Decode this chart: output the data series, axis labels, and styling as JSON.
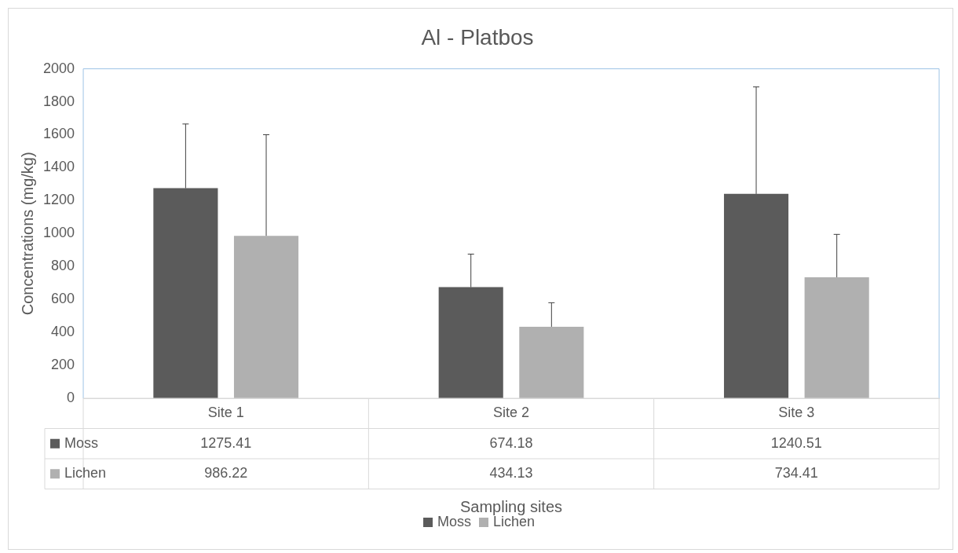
{
  "chart_data": {
    "type": "bar",
    "title": "Al - Platbos",
    "xlabel": "Sampling sites",
    "ylabel": "Concentrations (mg/kg)",
    "categories": [
      "Site 1",
      "Site 2",
      "Site 3"
    ],
    "series": [
      {
        "name": "Moss",
        "color": "#5b5b5b",
        "values": [
          1275.41,
          674.18,
          1240.51
        ],
        "errors": [
          [
            1275.41,
            1665
          ],
          [
            674.18,
            875
          ],
          [
            1240.51,
            1890
          ]
        ]
      },
      {
        "name": "Lichen",
        "color": "#b0b0b0",
        "values": [
          986.22,
          434.13,
          734.41
        ],
        "errors": [
          [
            986.22,
            1600
          ],
          [
            434.13,
            580
          ],
          [
            734.41,
            995
          ]
        ]
      }
    ],
    "ylim": [
      0,
      2000
    ],
    "yticks": [
      0,
      200,
      400,
      600,
      800,
      1000,
      1200,
      1400,
      1600,
      1800,
      2000
    ],
    "grid": false,
    "legend": "bottom",
    "data_labels": true
  }
}
